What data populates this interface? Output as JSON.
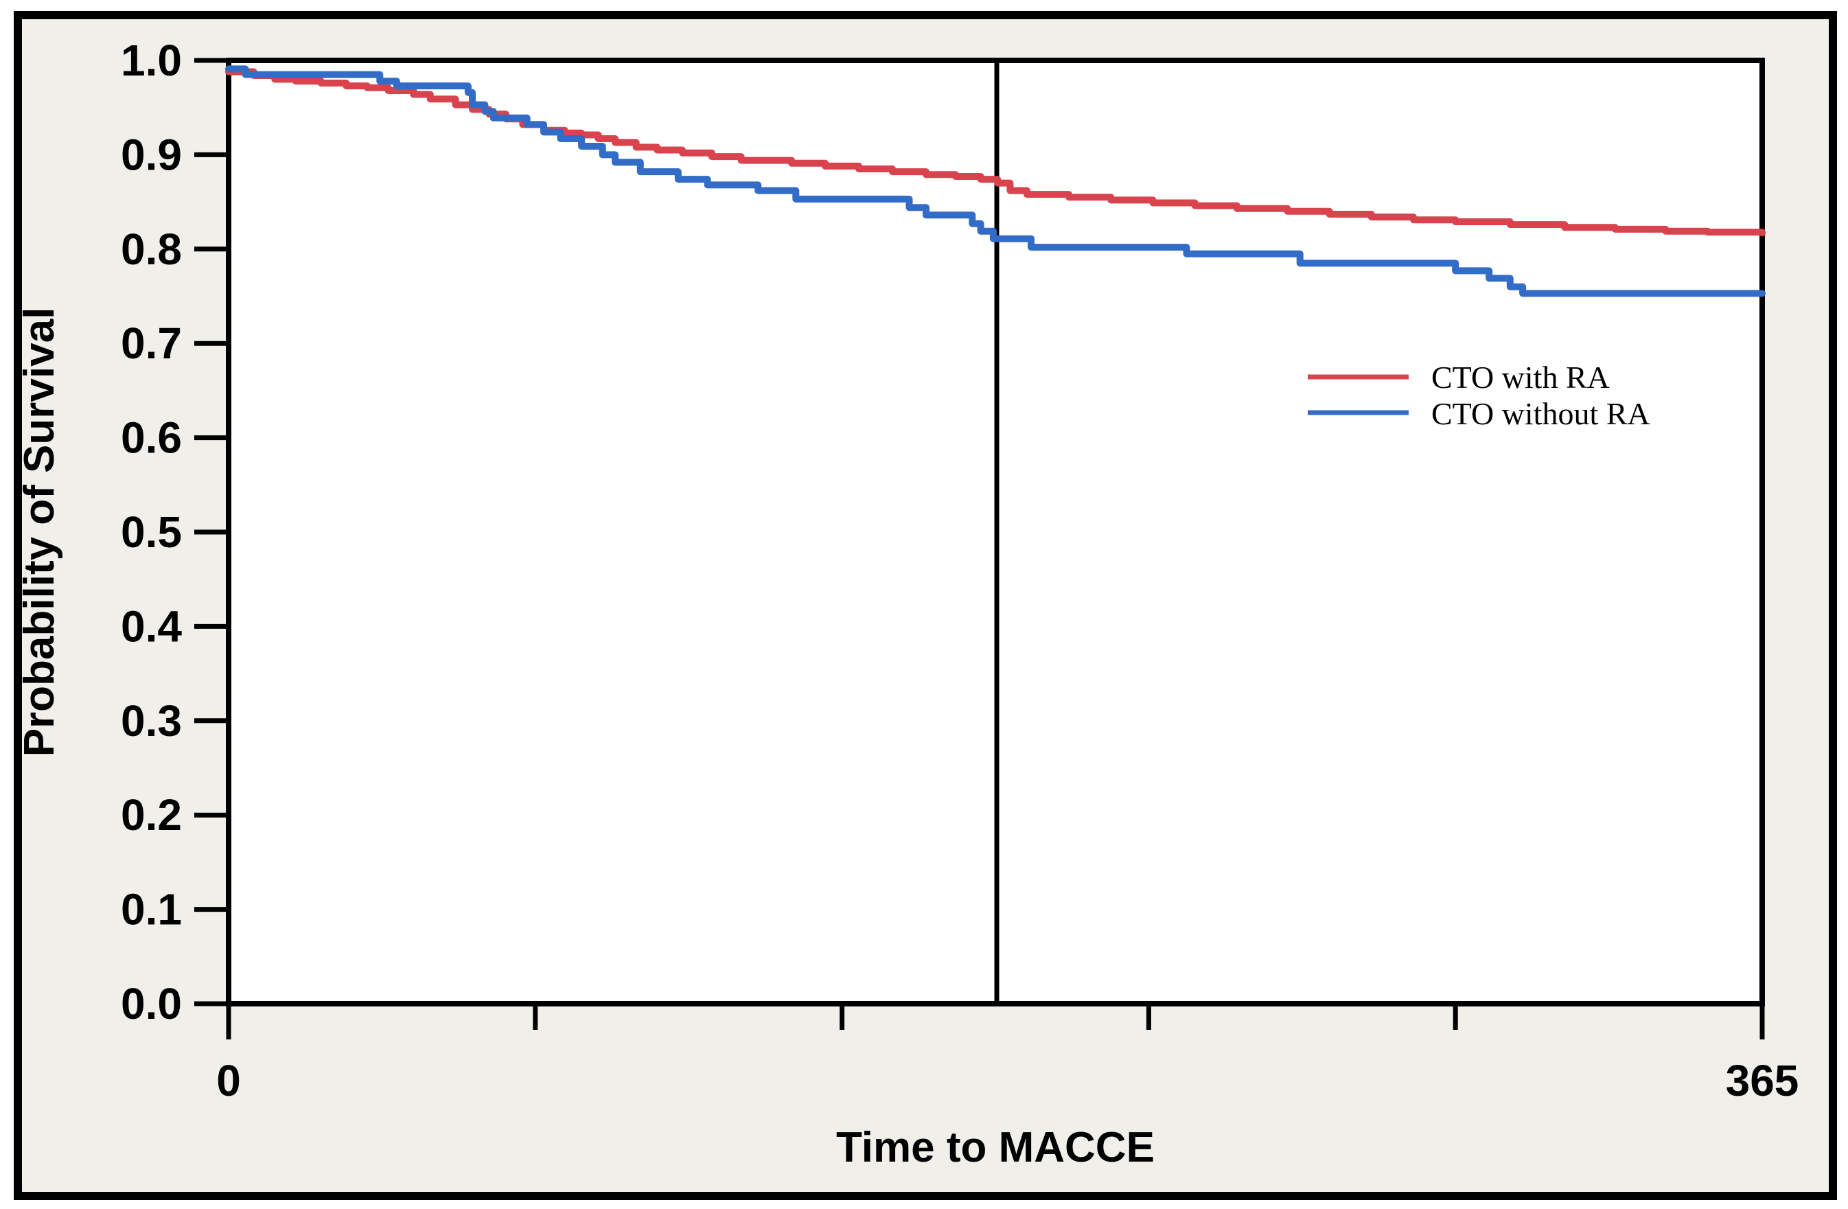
{
  "figure": {
    "background_color": "#f0efea",
    "plot_background_color": "#ffffff",
    "frame_color": "#000000",
    "text_color": "#000000"
  },
  "chart_data": {
    "type": "line",
    "subtype": "kaplan-meier-step",
    "title": "",
    "xlabel": "Time to MACCE",
    "ylabel": "Probability of Survival",
    "xlim": [
      0,
      365
    ],
    "ylim": [
      0.0,
      1.0
    ],
    "grid": false,
    "x_tick_labels": [
      "0",
      "365"
    ],
    "x_ticks_labeled": [
      0,
      365
    ],
    "x_ticks_minor": [
      73,
      146,
      219,
      292
    ],
    "y_tick_labels": [
      "1.0",
      "0.9",
      "0.8",
      "0.7",
      "0.6",
      "0.5",
      "0.4",
      "0.3",
      "0.2",
      "0.1",
      "0.0"
    ],
    "y_ticks": [
      1.0,
      0.9,
      0.8,
      0.7,
      0.6,
      0.5,
      0.4,
      0.3,
      0.2,
      0.1,
      0.0
    ],
    "reference_line_x": 183,
    "legend": {
      "position": "right-middle",
      "entries": [
        {
          "label": "CTO with RA",
          "color": "#d8434d"
        },
        {
          "label": "CTO without RA",
          "color": "#336cc7"
        }
      ]
    },
    "series": [
      {
        "name": "CTO with RA",
        "color": "#d8434d",
        "step": "after",
        "points": [
          [
            0,
            0.988
          ],
          [
            6,
            0.984
          ],
          [
            11,
            0.98
          ],
          [
            16,
            0.978
          ],
          [
            22,
            0.976
          ],
          [
            28,
            0.973
          ],
          [
            33,
            0.971
          ],
          [
            38,
            0.968
          ],
          [
            44,
            0.964
          ],
          [
            48,
            0.959
          ],
          [
            54,
            0.953
          ],
          [
            58,
            0.948
          ],
          [
            62,
            0.943
          ],
          [
            66,
            0.938
          ],
          [
            70,
            0.932
          ],
          [
            75,
            0.926
          ],
          [
            80,
            0.923
          ],
          [
            84,
            0.921
          ],
          [
            88,
            0.917
          ],
          [
            92,
            0.913
          ],
          [
            97,
            0.908
          ],
          [
            102,
            0.905
          ],
          [
            108,
            0.902
          ],
          [
            115,
            0.898
          ],
          [
            122,
            0.894
          ],
          [
            134,
            0.891
          ],
          [
            142,
            0.888
          ],
          [
            150,
            0.885
          ],
          [
            158,
            0.882
          ],
          [
            166,
            0.879
          ],
          [
            173,
            0.877
          ],
          [
            179,
            0.874
          ],
          [
            183,
            0.87
          ],
          [
            186,
            0.862
          ],
          [
            190,
            0.858
          ],
          [
            200,
            0.855
          ],
          [
            210,
            0.852
          ],
          [
            220,
            0.849
          ],
          [
            230,
            0.846
          ],
          [
            240,
            0.843
          ],
          [
            252,
            0.84
          ],
          [
            262,
            0.837
          ],
          [
            272,
            0.834
          ],
          [
            282,
            0.831
          ],
          [
            292,
            0.829
          ],
          [
            305,
            0.826
          ],
          [
            318,
            0.823
          ],
          [
            330,
            0.821
          ],
          [
            342,
            0.819
          ],
          [
            352,
            0.818
          ],
          [
            365,
            0.817
          ]
        ]
      },
      {
        "name": "CTO without RA",
        "color": "#336cc7",
        "step": "after",
        "points": [
          [
            0,
            0.991
          ],
          [
            4,
            0.985
          ],
          [
            36,
            0.978
          ],
          [
            40,
            0.973
          ],
          [
            57,
            0.966
          ],
          [
            58,
            0.953
          ],
          [
            61,
            0.946
          ],
          [
            63,
            0.939
          ],
          [
            71,
            0.932
          ],
          [
            75,
            0.924
          ],
          [
            79,
            0.917
          ],
          [
            84,
            0.909
          ],
          [
            89,
            0.9
          ],
          [
            92,
            0.892
          ],
          [
            98,
            0.882
          ],
          [
            107,
            0.874
          ],
          [
            114,
            0.868
          ],
          [
            126,
            0.862
          ],
          [
            135,
            0.853
          ],
          [
            162,
            0.844
          ],
          [
            166,
            0.836
          ],
          [
            177,
            0.827
          ],
          [
            179,
            0.819
          ],
          [
            182,
            0.811
          ],
          [
            191,
            0.802
          ],
          [
            228,
            0.795
          ],
          [
            255,
            0.785
          ],
          [
            292,
            0.777
          ],
          [
            300,
            0.769
          ],
          [
            305,
            0.76
          ],
          [
            308,
            0.753
          ],
          [
            365,
            0.753
          ]
        ]
      }
    ]
  }
}
